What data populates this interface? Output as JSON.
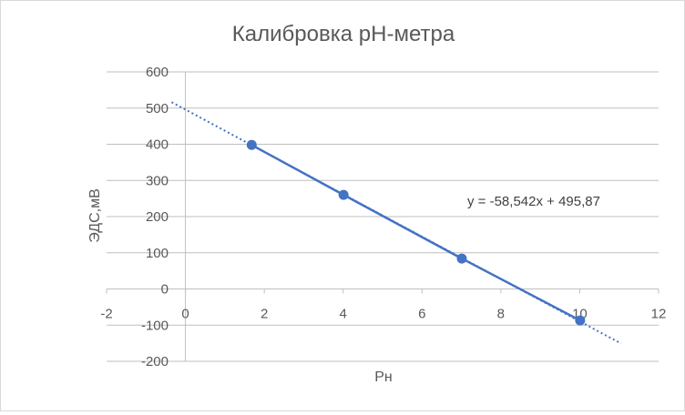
{
  "chart_data": {
    "type": "scatter",
    "title": "Калибровка pH-метра",
    "xlabel": "Рн",
    "ylabel": "ЭДС,мВ",
    "xlim": [
      -2,
      12
    ],
    "ylim": [
      -200,
      600
    ],
    "x_ticks": [
      -2,
      0,
      2,
      4,
      6,
      8,
      10,
      12
    ],
    "y_ticks": [
      -200,
      -100,
      0,
      100,
      200,
      300,
      400,
      500,
      600
    ],
    "grid": "horizontal",
    "legend": "none",
    "colors": {
      "series": "#4472c4",
      "grid": "#bfbfbf",
      "text": "#595959"
    },
    "series": [
      {
        "points": [
          {
            "x": 1.68,
            "y": 398
          },
          {
            "x": 4.01,
            "y": 260
          },
          {
            "x": 7.01,
            "y": 84
          },
          {
            "x": 10.01,
            "y": -87
          }
        ]
      }
    ],
    "trendline": {
      "slope": -58.542,
      "intercept": 495.87,
      "x_range": [
        -0.35,
        11.05
      ],
      "equation": "y = -58,542x + 495,87"
    }
  }
}
